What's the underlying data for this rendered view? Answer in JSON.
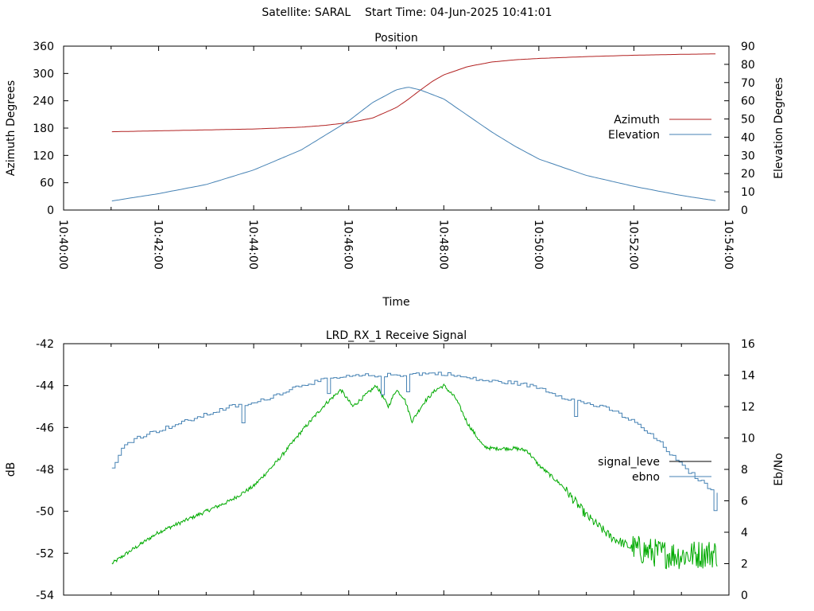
{
  "header": {
    "satellite_label": "Satellite: SARAL",
    "start_time_label": "Start Time: 04-Jun-2025 10:41:01"
  },
  "chart_data": [
    {
      "type": "line",
      "title": "Position",
      "xlabel": "Time",
      "ylabel": "Azimuth Degrees",
      "y2label": "Elevation Degrees",
      "xlim": [
        "10:40:00",
        "10:54:00"
      ],
      "x_ticks": [
        "10:40:00",
        "10:42:00",
        "10:44:00",
        "10:46:00",
        "10:48:00",
        "10:50:00",
        "10:52:00",
        "10:54:00"
      ],
      "ylim": [
        0,
        360
      ],
      "y_ticks": [
        "0",
        "60",
        "120",
        "180",
        "240",
        "300",
        "360"
      ],
      "y2lim": [
        0,
        90
      ],
      "y2_ticks": [
        "0",
        "10",
        "20",
        "30",
        "40",
        "50",
        "60",
        "70",
        "80",
        "90"
      ],
      "grid": false,
      "legend_position": "right",
      "series": [
        {
          "name": "Azimuth",
          "axis": "left",
          "color": "#b22222",
          "x": [
            "10:41:01",
            "10:42:00",
            "10:43:00",
            "10:44:00",
            "10:45:00",
            "10:45:30",
            "10:46:00",
            "10:46:30",
            "10:47:00",
            "10:47:15",
            "10:47:30",
            "10:47:45",
            "10:48:00",
            "10:48:30",
            "10:49:00",
            "10:49:30",
            "10:50:00",
            "10:51:00",
            "10:52:00",
            "10:53:00",
            "10:53:45"
          ],
          "values": [
            172,
            174,
            176,
            178,
            182,
            186,
            192,
            202,
            225,
            243,
            263,
            282,
            297,
            315,
            325,
            330,
            333,
            337,
            340,
            342,
            343
          ]
        },
        {
          "name": "Elevation",
          "axis": "right",
          "color": "#4682b4",
          "x": [
            "10:41:01",
            "10:42:00",
            "10:43:00",
            "10:44:00",
            "10:45:00",
            "10:45:30",
            "10:46:00",
            "10:46:30",
            "10:47:00",
            "10:47:15",
            "10:47:30",
            "10:48:00",
            "10:48:30",
            "10:49:00",
            "10:49:30",
            "10:50:00",
            "10:51:00",
            "10:52:00",
            "10:53:00",
            "10:53:45"
          ],
          "values": [
            5,
            9,
            14,
            22,
            33,
            41,
            49,
            59,
            66,
            67.5,
            66,
            61,
            52,
            43,
            35,
            28,
            19,
            13,
            8,
            5
          ]
        }
      ]
    },
    {
      "type": "line",
      "title": "LRD_RX_1 Receive Signal",
      "xlabel": "",
      "ylabel": "dB",
      "y2label": "Eb/No",
      "xlim": [
        "10:40:00",
        "10:54:00"
      ],
      "ylim": [
        -54,
        -42
      ],
      "y_ticks": [
        "-54",
        "-52",
        "-50",
        "-48",
        "-46",
        "-44",
        "-42"
      ],
      "y2lim": [
        0,
        16
      ],
      "y2_ticks": [
        "0",
        "2",
        "4",
        "6",
        "8",
        "10",
        "12",
        "14",
        "16"
      ],
      "grid": false,
      "legend_position": "right",
      "series": [
        {
          "name": "signal_leve",
          "axis": "left",
          "color": "#00aa00",
          "x": [
            "10:41:01",
            "10:41:20",
            "10:41:40",
            "10:42:00",
            "10:42:30",
            "10:43:00",
            "10:43:30",
            "10:44:00",
            "10:44:30",
            "10:45:00",
            "10:45:30",
            "10:45:50",
            "10:46:05",
            "10:46:20",
            "10:46:35",
            "10:46:50",
            "10:47:00",
            "10:47:10",
            "10:47:20",
            "10:47:35",
            "10:47:50",
            "10:48:00",
            "10:48:15",
            "10:48:30",
            "10:48:50",
            "10:49:00",
            "10:49:30",
            "10:49:45",
            "10:50:00",
            "10:50:30",
            "10:51:00",
            "10:51:30",
            "10:52:00",
            "10:52:30",
            "10:53:00",
            "10:53:45"
          ],
          "values": [
            -52.5,
            -52.0,
            -51.5,
            -51.0,
            -50.5,
            -50.0,
            -49.5,
            -48.8,
            -47.6,
            -46.2,
            -44.9,
            -44.2,
            -45.0,
            -44.5,
            -44.0,
            -45.0,
            -44.2,
            -44.6,
            -45.7,
            -44.8,
            -44.2,
            -44.0,
            -44.6,
            -45.8,
            -46.9,
            -47.0,
            -47.0,
            -47.1,
            -47.8,
            -48.8,
            -50.2,
            -51.2,
            -51.8,
            -52.0,
            -52.1,
            -52.0
          ]
        },
        {
          "name": "ebno",
          "axis": "right",
          "color": "#4682b4",
          "x": [
            "10:41:01",
            "10:41:15",
            "10:41:30",
            "10:42:00",
            "10:42:30",
            "10:43:00",
            "10:43:30",
            "10:44:00",
            "10:44:30",
            "10:45:00",
            "10:45:30",
            "10:46:00",
            "10:46:30",
            "10:47:00",
            "10:47:30",
            "10:48:00",
            "10:48:30",
            "10:49:00",
            "10:49:30",
            "10:50:00",
            "10:50:30",
            "10:51:00",
            "10:51:30",
            "10:52:00",
            "10:52:30",
            "10:53:00",
            "10:53:30",
            "10:53:45"
          ],
          "values": [
            8,
            9.5,
            10,
            10.5,
            11,
            11.5,
            12,
            12.2,
            12.8,
            13.4,
            13.7,
            13.9,
            14.0,
            14.0,
            14.1,
            14.1,
            13.8,
            13.6,
            13.5,
            13.2,
            12.6,
            12.2,
            11.8,
            11.0,
            9.8,
            8.2,
            7.0,
            6.5
          ]
        }
      ]
    }
  ]
}
